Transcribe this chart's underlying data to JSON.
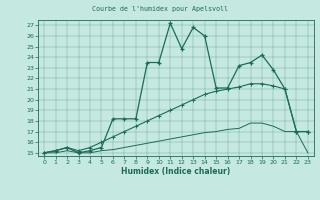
{
  "title": "Courbe de l'humidex pour Apelsvoll",
  "xlabel": "Humidex (Indice chaleur)",
  "xlim": [
    -0.5,
    23.5
  ],
  "ylim": [
    14.7,
    27.5
  ],
  "yticks": [
    15,
    16,
    17,
    18,
    19,
    20,
    21,
    22,
    23,
    24,
    25,
    26,
    27
  ],
  "xticks": [
    0,
    1,
    2,
    3,
    4,
    5,
    6,
    7,
    8,
    9,
    10,
    11,
    12,
    13,
    14,
    15,
    16,
    17,
    18,
    19,
    20,
    21,
    22,
    23
  ],
  "background_color": "#c5e8e0",
  "line_color": "#1a6b5a",
  "line1_x": [
    0,
    1,
    2,
    3,
    4,
    5,
    6,
    7,
    8,
    9,
    10,
    11,
    12,
    13,
    14,
    15,
    16,
    17,
    18,
    19,
    20,
    21,
    22,
    23
  ],
  "line1_y": [
    15.0,
    15.2,
    15.5,
    15.0,
    15.2,
    15.5,
    18.2,
    18.2,
    18.2,
    23.5,
    23.5,
    27.2,
    24.8,
    26.8,
    26.0,
    21.1,
    21.1,
    23.2,
    23.5,
    24.2,
    22.8,
    21.0,
    17.0,
    17.0
  ],
  "line2_x": [
    0,
    1,
    2,
    3,
    4,
    5,
    6,
    7,
    8,
    9,
    10,
    11,
    12,
    13,
    14,
    15,
    16,
    17,
    18,
    19,
    20,
    21,
    22,
    23
  ],
  "line2_y": [
    15.0,
    15.2,
    15.5,
    15.2,
    15.5,
    16.0,
    16.5,
    17.0,
    17.5,
    18.0,
    18.5,
    19.0,
    19.5,
    20.0,
    20.5,
    20.8,
    21.0,
    21.2,
    21.5,
    21.5,
    21.3,
    21.0,
    17.0,
    17.0
  ],
  "line3_x": [
    0,
    1,
    2,
    3,
    4,
    5,
    6,
    7,
    8,
    9,
    10,
    11,
    12,
    13,
    14,
    15,
    16,
    17,
    18,
    19,
    20,
    21,
    22,
    23
  ],
  "line3_y": [
    15.0,
    15.0,
    15.2,
    15.0,
    15.0,
    15.2,
    15.3,
    15.5,
    15.7,
    15.9,
    16.1,
    16.3,
    16.5,
    16.7,
    16.9,
    17.0,
    17.2,
    17.3,
    17.8,
    17.8,
    17.5,
    17.0,
    17.0,
    15.0
  ]
}
